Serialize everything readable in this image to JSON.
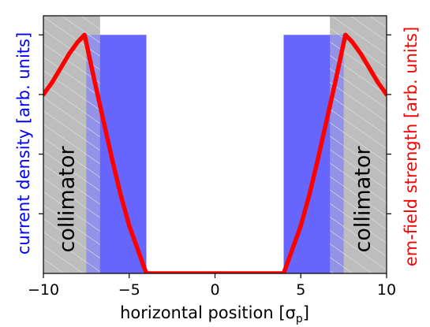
{
  "chart_data": {
    "type": "area",
    "xlabel": "horizontal position [σ",
    "xlabel_sub": "p",
    "xlabel_suffix": "]",
    "ylabel_left": "current density [arb. units]",
    "ylabel_right": "em-field strength [arb. units]",
    "xlim": [
      -10,
      10
    ],
    "ylim": [
      0,
      1.08
    ],
    "x_ticks": [
      -10,
      -5,
      0,
      5,
      10
    ],
    "x_tick_labels": [
      "−10",
      "−5",
      "0",
      "5",
      "10"
    ],
    "y_tick_values": [
      0.25,
      0.5,
      0.75,
      1.0
    ],
    "y_tick_labels_shown": false,
    "collimator_regions": [
      {
        "x_from": -10,
        "x_to": -6.7,
        "label": "collimator"
      },
      {
        "x_from": 6.7,
        "x_to": 10,
        "label": "collimator"
      }
    ],
    "current_density": {
      "color": "#6666ff",
      "regions": [
        {
          "x_from": -7.5,
          "x_to": -4.0,
          "value": 1.0
        },
        {
          "x_from": 4.0,
          "x_to": 7.5,
          "value": 1.0
        }
      ]
    },
    "em_field": {
      "color": "#ff0000",
      "x": [
        -10,
        -9.5,
        -9,
        -8.5,
        -8,
        -7.6,
        -7.0,
        -6.5,
        -6.0,
        -5.5,
        -5.0,
        -4.5,
        -4.0,
        4.0,
        4.5,
        5.0,
        5.5,
        6.0,
        6.5,
        7.0,
        7.6,
        8,
        8.5,
        9,
        9.5,
        10
      ],
      "y": [
        0.75,
        0.8,
        0.86,
        0.92,
        0.97,
        1.0,
        0.8,
        0.64,
        0.48,
        0.33,
        0.2,
        0.1,
        0.0,
        0.0,
        0.1,
        0.2,
        0.33,
        0.48,
        0.64,
        0.8,
        1.0,
        0.97,
        0.92,
        0.86,
        0.8,
        0.75
      ]
    }
  }
}
